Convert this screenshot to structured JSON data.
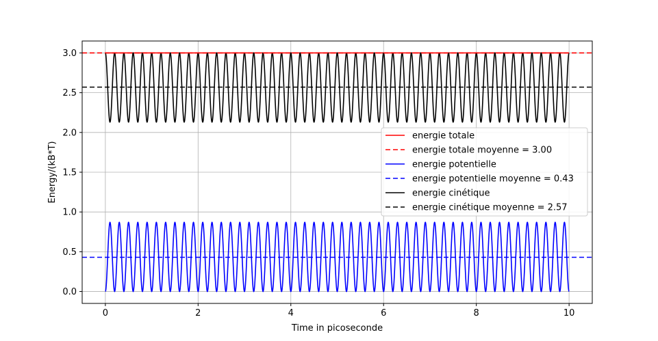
{
  "chart_data": {
    "type": "line",
    "title": "",
    "xlabel": "Time in picoseconde",
    "ylabel": "Energy/(kB*T)",
    "xlim": [
      -0.5,
      10.5
    ],
    "ylim": [
      -0.15,
      3.15
    ],
    "x_ticks": [
      0,
      2,
      4,
      6,
      8,
      10
    ],
    "x_tick_labels": [
      "0",
      "2",
      "4",
      "6",
      "8",
      "10"
    ],
    "y_ticks": [
      0.0,
      0.5,
      1.0,
      1.5,
      2.0,
      2.5,
      3.0
    ],
    "y_tick_labels": [
      "0.0",
      "0.5",
      "1.0",
      "1.5",
      "2.0",
      "2.5",
      "3.0"
    ],
    "grid": true,
    "legend_position": "center-right",
    "series": [
      {
        "name": "energie totale",
        "kind": "constant",
        "value": 3.0,
        "x_range": [
          0,
          10
        ],
        "color": "#ff0000",
        "style": "solid"
      },
      {
        "name": "energie potentielle",
        "kind": "oscillation",
        "min": 0.0,
        "max": 0.87,
        "oscillations": 50,
        "x_range": [
          0,
          10
        ],
        "color": "#0000ff",
        "style": "solid"
      },
      {
        "name": "energie cinétique",
        "kind": "oscillation",
        "min": 2.13,
        "max": 3.0,
        "oscillations": 50,
        "x_range": [
          0,
          10
        ],
        "color": "#000000",
        "style": "solid"
      }
    ],
    "mean_lines": [
      {
        "name": "energie totale moyenne = 3.00",
        "value": 3.0,
        "color": "#ff0000",
        "style": "dashed"
      },
      {
        "name": "energie potentielle moyenne = 0.43",
        "value": 0.43,
        "color": "#0000ff",
        "style": "dashed"
      },
      {
        "name": "energie cinétique moyenne = 2.57",
        "value": 2.57,
        "color": "#000000",
        "style": "dashed"
      }
    ],
    "legend": [
      {
        "label": "energie totale",
        "color": "#ff0000",
        "style": "solid"
      },
      {
        "label": "energie totale moyenne = 3.00",
        "color": "#ff0000",
        "style": "dashed"
      },
      {
        "label": "energie potentielle",
        "color": "#0000ff",
        "style": "solid"
      },
      {
        "label": "energie potentielle moyenne = 0.43",
        "color": "#0000ff",
        "style": "dashed"
      },
      {
        "label": "energie cinétique",
        "color": "#000000",
        "style": "solid"
      },
      {
        "label": "energie cinétique moyenne = 2.57",
        "color": "#000000",
        "style": "dashed"
      }
    ]
  }
}
